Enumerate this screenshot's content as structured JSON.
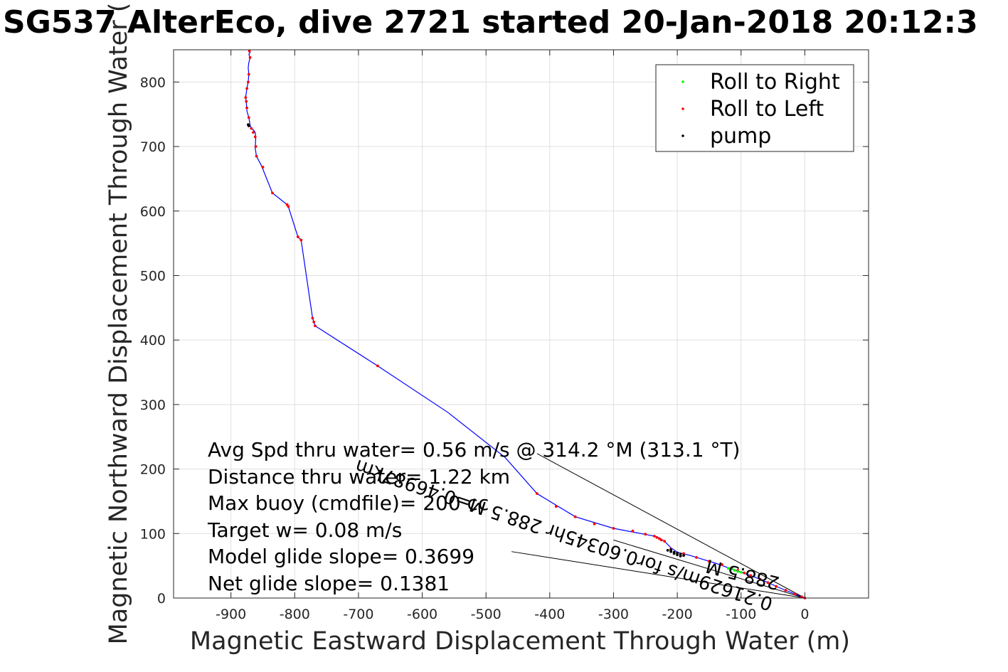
{
  "chart_data": {
    "type": "line",
    "title": "SG537 AlterEco, dive 2721 started 20-Jan-2018 20:12:3",
    "xlabel": "Magnetic Eastward Displacement Through Water (m)",
    "ylabel": "Magnetic Northward Displacement Through Water (",
    "xlim": [
      -990,
      100
    ],
    "ylim": [
      0,
      850
    ],
    "xticks": [
      -900,
      -800,
      -700,
      -600,
      -500,
      -400,
      -300,
      -200,
      -100,
      0
    ],
    "yticks": [
      0,
      100,
      200,
      300,
      400,
      500,
      600,
      700,
      800
    ],
    "grid": true,
    "legend": {
      "placement": "top-right",
      "entries": [
        {
          "label": "Roll to Right",
          "color": "#00ff00"
        },
        {
          "label": "Roll to Left",
          "color": "#ff0000"
        },
        {
          "label": "pump",
          "color": "#000000"
        }
      ]
    },
    "track_color": "#0000ff",
    "track": {
      "x": [
        0,
        -20,
        -40,
        -60,
        -80,
        -100,
        -120,
        -140,
        -160,
        -180,
        -200,
        -210,
        -220,
        -228,
        -236,
        -300,
        -360,
        -420,
        -470,
        -560,
        -670,
        -768,
        -770,
        -772,
        -790,
        -795,
        -810,
        -812,
        -835,
        -852,
        -860,
        -862,
        -861,
        -862,
        -865,
        -868,
        -870,
        -872,
        -875,
        -876,
        -877,
        -875,
        -873,
        -872,
        -873,
        -872,
        -870,
        -872,
        -870,
        -872,
        -871
      ],
      "y": [
        0,
        8,
        16,
        25,
        33,
        40,
        47,
        54,
        60,
        66,
        71,
        78,
        88,
        93,
        96,
        108,
        126,
        162,
        218,
        288,
        360,
        422,
        428,
        434,
        555,
        560,
        607,
        610,
        628,
        670,
        685,
        698,
        715,
        722,
        726,
        728,
        733,
        745,
        755,
        770,
        776,
        790,
        800,
        812,
        822,
        830,
        838,
        843,
        846,
        848,
        850
      ]
    },
    "roll_left_points": {
      "x": [
        0,
        -5,
        -15,
        -30,
        -45,
        -58,
        -70,
        -85,
        -95,
        -105,
        -115,
        -130,
        -150,
        -170,
        -190,
        -210,
        -220,
        -225,
        -228,
        -232,
        -236,
        -250,
        -270,
        -300,
        -330,
        -360,
        -390,
        -420,
        -670,
        -768,
        -770,
        -772,
        -790,
        -795,
        -810,
        -812,
        -835,
        -850,
        -860,
        -861,
        -862,
        -865,
        -868,
        -872,
        -875,
        -876,
        -877,
        -875,
        -873,
        -872,
        -870,
        -871
      ],
      "y": [
        0,
        2,
        6,
        12,
        18,
        24,
        29,
        35,
        39,
        43,
        46,
        52,
        57,
        63,
        69,
        76,
        88,
        90,
        92,
        94,
        96,
        99,
        104,
        108,
        115,
        126,
        142,
        162,
        360,
        422,
        428,
        434,
        555,
        560,
        607,
        610,
        628,
        668,
        685,
        700,
        715,
        722,
        728,
        745,
        760,
        770,
        776,
        790,
        800,
        812,
        838,
        848
      ]
    },
    "roll_right_points": {
      "x": [
        -100,
        -105,
        -110,
        -115,
        -120
      ],
      "y": [
        40,
        41,
        43,
        45,
        46
      ]
    },
    "pump_points": {
      "x": [
        -190,
        -195,
        -200,
        -205,
        -210,
        -215,
        -210,
        -205,
        -200,
        -195,
        -872,
        -873
      ],
      "y": [
        66,
        68,
        70,
        71,
        72,
        74,
        75,
        69,
        67,
        65,
        732,
        734
      ]
    },
    "reference_lines": [
      {
        "x": [
          0,
          -420
        ],
        "y": [
          0,
          224
        ]
      },
      {
        "x": [
          0,
          -460
        ],
        "y": [
          0,
          72
        ]
      },
      {
        "x": [
          0,
          -300
        ],
        "y": [
          0,
          90
        ]
      }
    ],
    "annotations": [
      "Avg Spd thru water=  0.56 m/s @ 314.2 °M (313.1 °T)",
      "Distance thru water= 1.22 km",
      "Max buoy (cmdfile)= 200 cc",
      "Target w= 0.08 m/s",
      "Model glide slope= 0.3699",
      "Net glide slope= 0.1381"
    ],
    "rotated_labels": [
      "288.5 M",
      "0.21629m/s for0.60345hr 288.5 M=0.46987km"
    ]
  }
}
